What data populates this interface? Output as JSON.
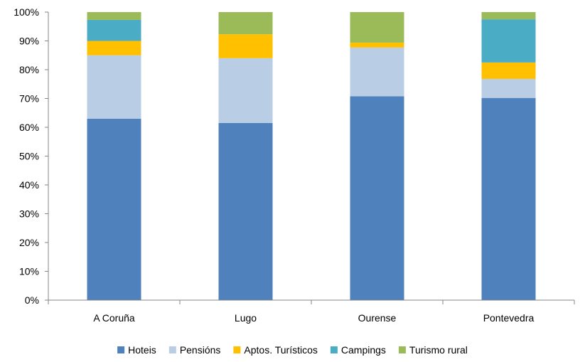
{
  "chart_data": {
    "type": "bar",
    "stacked": "percent",
    "categories": [
      "A Coruña",
      "Lugo",
      "Ourense",
      "Pontevedra"
    ],
    "series": [
      {
        "name": "Hoteis",
        "color": "#4F81BD",
        "values": [
          63,
          61.5,
          70.8,
          70.2
        ]
      },
      {
        "name": "Pensións",
        "color": "#B9CDE5",
        "values": [
          22,
          22.5,
          16.9,
          6.6
        ]
      },
      {
        "name": "Aptos. Turísticos",
        "color": "#FFC000",
        "values": [
          5,
          8.3,
          1.7,
          5.7
        ]
      },
      {
        "name": "Campings",
        "color": "#4BACC6",
        "values": [
          7.3,
          0,
          0,
          15
        ]
      },
      {
        "name": "Turismo rural",
        "color": "#9BBB59",
        "values": [
          2.7,
          7.7,
          10.6,
          2.5
        ]
      }
    ],
    "yticks": [
      "0%",
      "10%",
      "20%",
      "30%",
      "40%",
      "50%",
      "60%",
      "70%",
      "80%",
      "90%",
      "100%"
    ],
    "ylim": [
      0,
      100
    ],
    "grid": false,
    "legend_position": "bottom",
    "title": "",
    "xlabel": "",
    "ylabel": ""
  }
}
